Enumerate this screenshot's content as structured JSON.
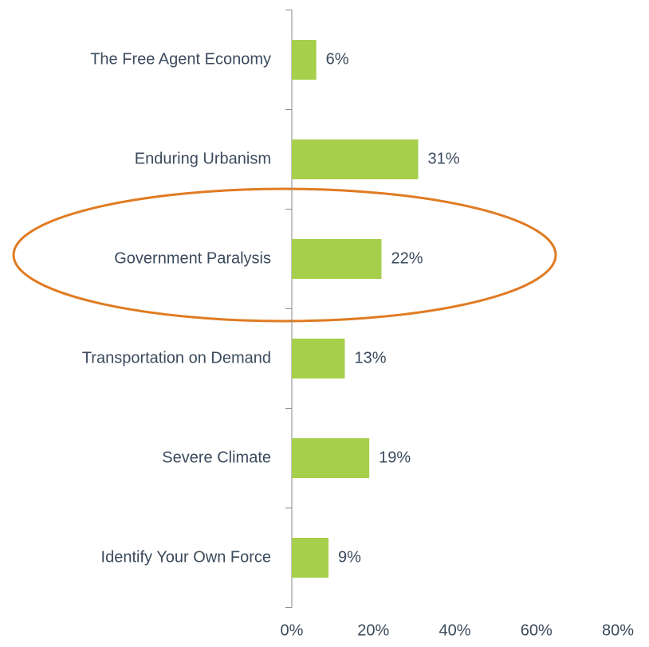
{
  "chart_data": {
    "type": "bar",
    "orientation": "horizontal",
    "categories": [
      "The Free Agent Economy",
      "Enduring Urbanism",
      "Government Paralysis",
      "Transportation on Demand",
      "Severe Climate",
      "Identify Your Own Force"
    ],
    "values": [
      6,
      31,
      22,
      13,
      19,
      9
    ],
    "value_labels": [
      "6%",
      "31%",
      "22%",
      "13%",
      "19%",
      "9%"
    ],
    "color": "#a6cf4b",
    "xlim": [
      0,
      80
    ],
    "xticks": [
      {
        "value": 0,
        "label": "0%"
      },
      {
        "value": 20,
        "label": "20%"
      },
      {
        "value": 40,
        "label": "40%"
      },
      {
        "value": 60,
        "label": "60%"
      },
      {
        "value": 80,
        "label": "80%"
      }
    ],
    "grid": false
  }
}
